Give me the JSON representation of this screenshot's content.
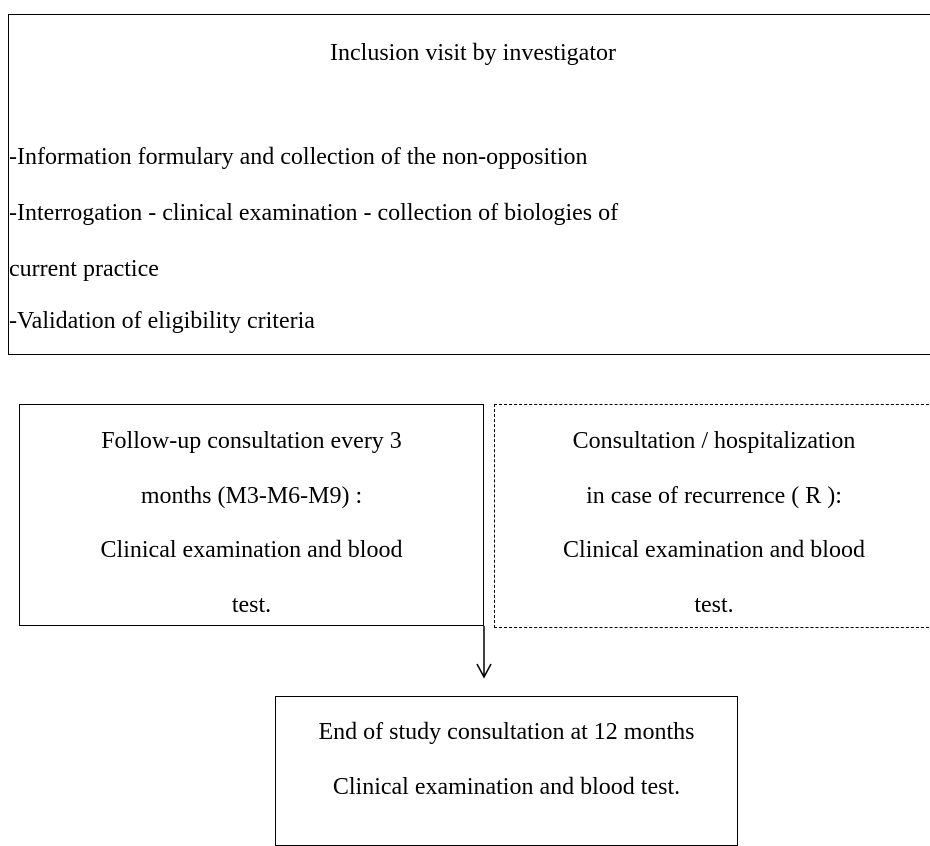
{
  "nodes": [
    {
      "title": "Inclusion visit by investigator",
      "lines": [
        "-Information formulary and collection of the non-opposition",
        "-Interrogation - clinical examination - collection of biologies of",
        "current practice",
        "-Validation of eligibility criteria"
      ]
    },
    {
      "lines": [
        "Follow-up consultation every 3",
        "months (M3-M6-M9) :",
        "Clinical examination and blood",
        "test."
      ]
    },
    {
      "lines": [
        "Consultation / hospitalization",
        "in case of recurrence ( R ):",
        "Clinical examination and blood",
        "test."
      ]
    },
    {
      "lines": [
        "End of study consultation at 12 months",
        "Clinical examination and blood test."
      ]
    }
  ]
}
